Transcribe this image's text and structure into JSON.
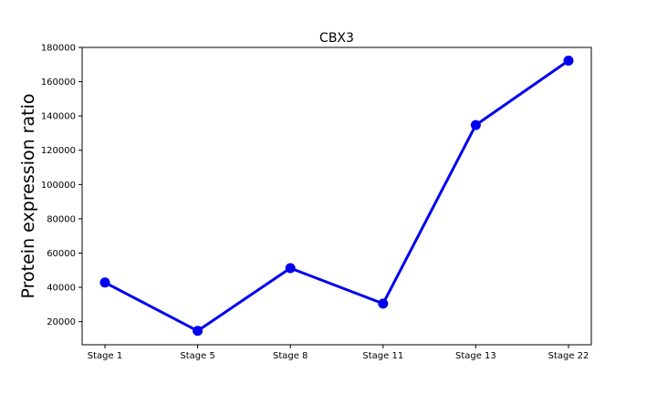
{
  "chart_data": {
    "type": "line",
    "title": "CBX3",
    "xlabel": "",
    "ylabel": "Protein expression ratio",
    "categories": [
      "Stage 1",
      "Stage 5",
      "Stage 8",
      "Stage 11",
      "Stage 13",
      "Stage 22"
    ],
    "series": [
      {
        "values": [
          42800,
          14600,
          51200,
          30500,
          134700,
          172300
        ],
        "color": "#0000ee"
      }
    ],
    "ylim": [
      6500,
      180000
    ],
    "yticks": [
      20000,
      40000,
      60000,
      80000,
      100000,
      120000,
      140000,
      160000,
      180000
    ],
    "ytick_labels": [
      "20000",
      "40000",
      "60000",
      "80000",
      "100000",
      "120000",
      "140000",
      "160000",
      "180000"
    ],
    "grid": false,
    "legend": "none"
  }
}
